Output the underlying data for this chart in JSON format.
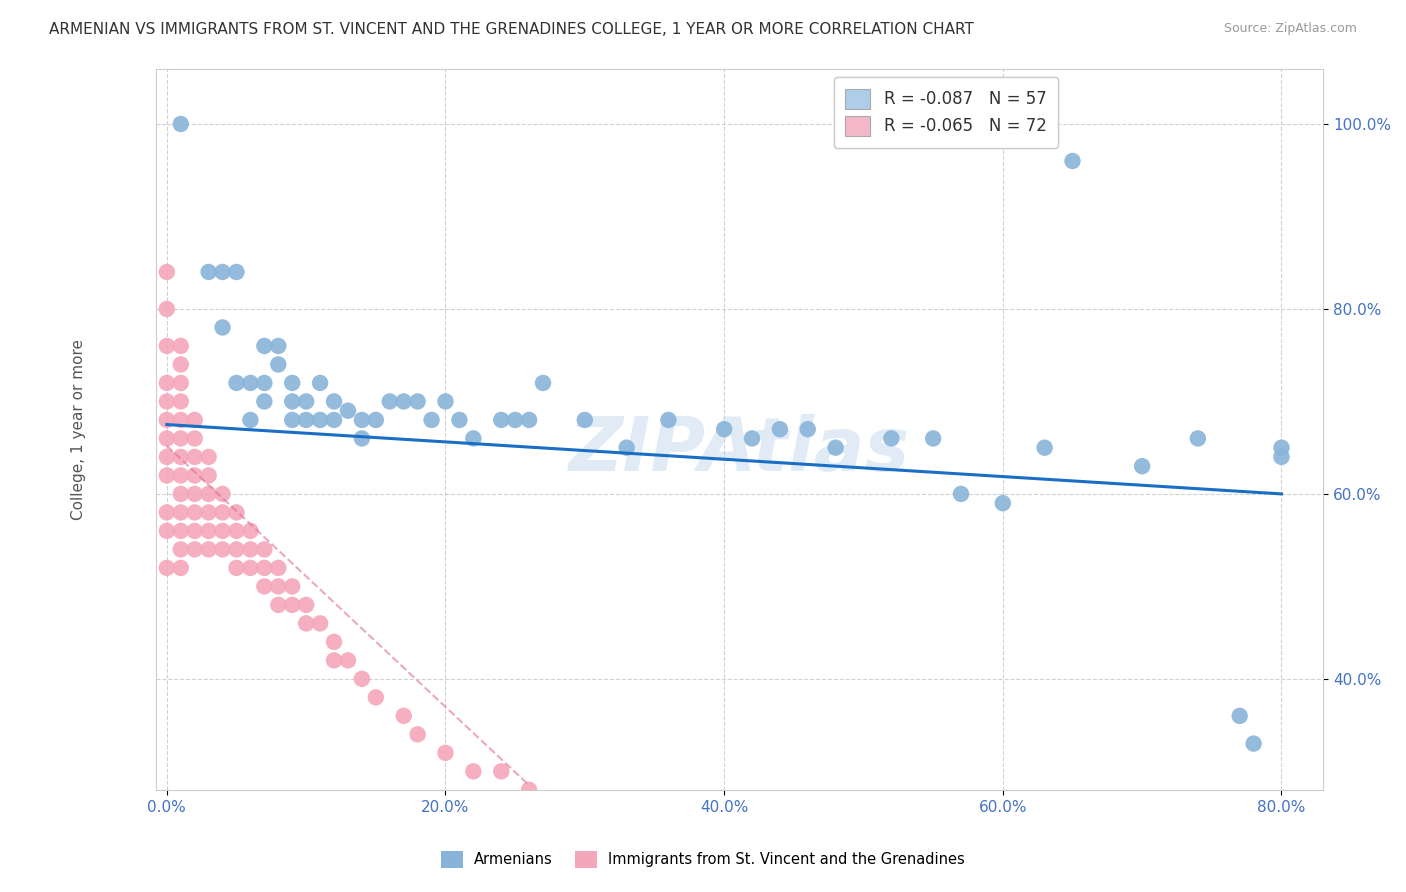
{
  "title": "ARMENIAN VS IMMIGRANTS FROM ST. VINCENT AND THE GRENADINES COLLEGE, 1 YEAR OR MORE CORRELATION CHART",
  "source": "Source: ZipAtlas.com",
  "ylabel": "College, 1 year or more",
  "xlim": [
    -0.008,
    0.83
  ],
  "ylim": [
    0.28,
    1.06
  ],
  "xticks": [
    0.0,
    0.2,
    0.4,
    0.6,
    0.8
  ],
  "yticks": [
    0.4,
    0.6,
    0.8,
    1.0
  ],
  "xtick_labels": [
    "0.0%",
    "20.0%",
    "40.0%",
    "60.0%",
    "80.0%"
  ],
  "ytick_labels": [
    "40.0%",
    "60.0%",
    "80.0%",
    "100.0%"
  ],
  "blue_R": -0.087,
  "blue_N": 57,
  "pink_R": -0.065,
  "pink_N": 72,
  "blue_color": "#89b4d9",
  "pink_color": "#f4a7b9",
  "blue_line_color": "#1a6fc4",
  "pink_line_color": "#e07090",
  "legend_box_blue": "#aecde8",
  "legend_box_pink": "#f4b8c8",
  "watermark": "ZIPAtlas",
  "watermark_color": "#b0cce8",
  "background_color": "#ffffff",
  "grid_color": "#cccccc",
  "title_fontsize": 11,
  "axis_fontsize": 11,
  "tick_fontsize": 11,
  "blue_scatter_x": [
    0.01,
    0.03,
    0.04,
    0.04,
    0.05,
    0.05,
    0.06,
    0.06,
    0.07,
    0.07,
    0.07,
    0.08,
    0.08,
    0.09,
    0.09,
    0.09,
    0.1,
    0.1,
    0.11,
    0.11,
    0.12,
    0.12,
    0.13,
    0.14,
    0.14,
    0.15,
    0.16,
    0.17,
    0.18,
    0.19,
    0.2,
    0.21,
    0.22,
    0.24,
    0.25,
    0.26,
    0.27,
    0.3,
    0.33,
    0.36,
    0.4,
    0.42,
    0.44,
    0.46,
    0.48,
    0.52,
    0.55,
    0.57,
    0.6,
    0.63,
    0.65,
    0.7,
    0.74,
    0.77,
    0.78,
    0.8,
    0.8
  ],
  "blue_scatter_y": [
    1.0,
    0.84,
    0.84,
    0.78,
    0.84,
    0.72,
    0.72,
    0.68,
    0.76,
    0.72,
    0.7,
    0.76,
    0.74,
    0.72,
    0.7,
    0.68,
    0.7,
    0.68,
    0.72,
    0.68,
    0.7,
    0.68,
    0.69,
    0.68,
    0.66,
    0.68,
    0.7,
    0.7,
    0.7,
    0.68,
    0.7,
    0.68,
    0.66,
    0.68,
    0.68,
    0.68,
    0.72,
    0.68,
    0.65,
    0.68,
    0.67,
    0.66,
    0.67,
    0.67,
    0.65,
    0.66,
    0.66,
    0.6,
    0.59,
    0.65,
    0.96,
    0.63,
    0.66,
    0.36,
    0.33,
    0.65,
    0.64
  ],
  "pink_scatter_x": [
    0.0,
    0.0,
    0.0,
    0.0,
    0.0,
    0.0,
    0.0,
    0.0,
    0.0,
    0.0,
    0.0,
    0.0,
    0.01,
    0.01,
    0.01,
    0.01,
    0.01,
    0.01,
    0.01,
    0.01,
    0.01,
    0.01,
    0.01,
    0.01,
    0.01,
    0.02,
    0.02,
    0.02,
    0.02,
    0.02,
    0.02,
    0.02,
    0.02,
    0.03,
    0.03,
    0.03,
    0.03,
    0.03,
    0.03,
    0.04,
    0.04,
    0.04,
    0.04,
    0.05,
    0.05,
    0.05,
    0.05,
    0.06,
    0.06,
    0.06,
    0.07,
    0.07,
    0.07,
    0.08,
    0.08,
    0.08,
    0.09,
    0.09,
    0.1,
    0.1,
    0.11,
    0.12,
    0.12,
    0.13,
    0.14,
    0.15,
    0.17,
    0.18,
    0.2,
    0.22,
    0.24,
    0.26
  ],
  "pink_scatter_y": [
    0.84,
    0.8,
    0.76,
    0.72,
    0.7,
    0.68,
    0.66,
    0.64,
    0.62,
    0.58,
    0.56,
    0.52,
    0.76,
    0.74,
    0.72,
    0.7,
    0.68,
    0.66,
    0.64,
    0.62,
    0.6,
    0.58,
    0.56,
    0.54,
    0.52,
    0.68,
    0.66,
    0.64,
    0.62,
    0.6,
    0.58,
    0.56,
    0.54,
    0.64,
    0.62,
    0.6,
    0.58,
    0.56,
    0.54,
    0.6,
    0.58,
    0.56,
    0.54,
    0.58,
    0.56,
    0.54,
    0.52,
    0.56,
    0.54,
    0.52,
    0.54,
    0.52,
    0.5,
    0.52,
    0.5,
    0.48,
    0.5,
    0.48,
    0.48,
    0.46,
    0.46,
    0.44,
    0.42,
    0.42,
    0.4,
    0.38,
    0.36,
    0.34,
    0.32,
    0.3,
    0.3,
    0.28
  ],
  "blue_trend_x": [
    0.0,
    0.8
  ],
  "blue_trend_y": [
    0.675,
    0.6
  ],
  "pink_trend_x": [
    0.0,
    0.26
  ],
  "pink_trend_y": [
    0.652,
    0.285
  ]
}
